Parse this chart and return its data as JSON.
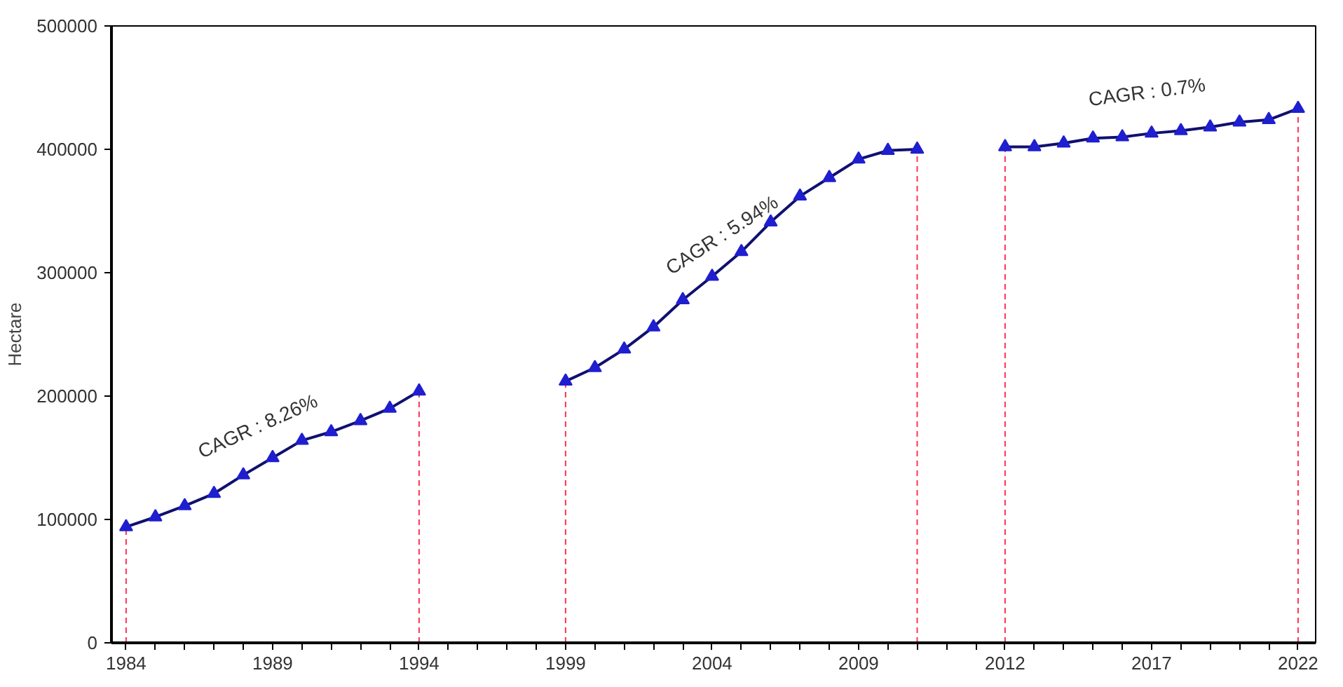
{
  "chart_data": {
    "type": "line",
    "ylabel": "Hectare",
    "categories": [
      "1984",
      null,
      null,
      null,
      null,
      "1989",
      null,
      null,
      null,
      null,
      "1994",
      null,
      null,
      null,
      null,
      "1999",
      null,
      null,
      null,
      null,
      "2004",
      null,
      null,
      null,
      null,
      "2009",
      null,
      null,
      null,
      null,
      "2012",
      null,
      null,
      null,
      null,
      "2017",
      null,
      null,
      null,
      null,
      "2022"
    ],
    "series": [
      {
        "color": "#1f1fd0",
        "values": [
          94000,
          102000,
          111000,
          121000,
          136000,
          150000,
          164000,
          171000,
          180000,
          190000,
          204000,
          null,
          null,
          null,
          null,
          212000,
          223000,
          238000,
          256000,
          278000,
          297000,
          317000,
          341000,
          362000,
          377000,
          392000,
          399000,
          400000,
          null,
          null,
          402000,
          402000,
          405000,
          409000,
          410000,
          413000,
          415000,
          418000,
          422000,
          424000,
          433000
        ]
      }
    ],
    "ylim": [
      0,
      500000
    ],
    "yticks": [
      0,
      100000,
      200000,
      300000,
      400000,
      500000
    ],
    "marker": "triangle",
    "line_style": "solid",
    "grid": false,
    "ref_lines": [
      {
        "axis": "x",
        "value": "1984",
        "color": "#ff3355",
        "line_style": "dashed"
      },
      {
        "axis": "x",
        "value": "1994",
        "color": "#ff3355",
        "line_style": "dashed"
      },
      {
        "axis": "x",
        "value": "1999",
        "color": "#ff3355",
        "line_style": "dashed"
      },
      {
        "axis": "x",
        "value": "2012",
        "color": "#ff3355",
        "line_style": "dashed"
      },
      {
        "axis": "x",
        "value": "2022",
        "color": "#ff3355",
        "line_style": "dashed"
      }
    ],
    "annotations": [
      "CAGR : 8.26%",
      "CAGR : 5.94%",
      "CAGR : 0.7%"
    ]
  }
}
